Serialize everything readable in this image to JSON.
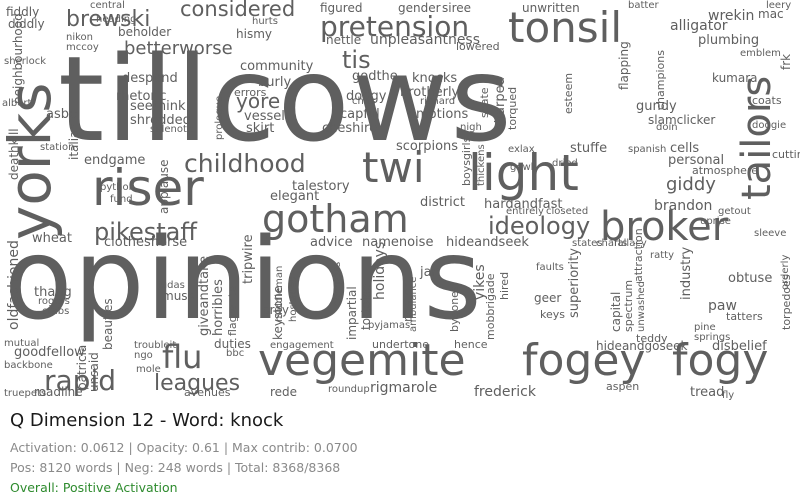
{
  "panel": {
    "title": "Q Dimension 12 - Word: knock",
    "stats_line": "Activation: 0.0612 | Opacity: 0.61 | Max contrib: 0.0700",
    "counts_line": "Pos: 8120 words | Neg: 248 words | Total: 8368/8368",
    "status_line": "Overall: Positive Activation",
    "status_color": "#2e8b2e",
    "word_color": "#5f5f5f"
  },
  "word_cloud": {
    "words": [
      "tillcows",
      "opinions",
      "vegemite",
      "fogey",
      "fogy",
      "gotham",
      "broker",
      "yorks",
      "riser",
      "light",
      "tonsil",
      "tailors",
      "twi",
      "pretension",
      "childhood",
      "pikestaff",
      "ideology",
      "brewski",
      "considered",
      "flu",
      "leagues",
      "rapid",
      "tis",
      "giddy",
      "yore",
      "betterworse",
      "fiddly",
      "figured",
      "gender",
      "siree",
      "unwritten",
      "nettle",
      "unpleasantness",
      "alligator",
      "plumbing",
      "kumara",
      "gundy",
      "slamclicker",
      "cells",
      "personal",
      "atmosphere",
      "brandon",
      "getout",
      "wrekin",
      "mac",
      "coats",
      "cuttin",
      "doggie",
      "despond",
      "rhetoric",
      "seethink",
      "shredded",
      "sidenote",
      "skirt",
      "vessel",
      "community",
      "burly",
      "errors",
      "hismy",
      "beholder",
      "godthe",
      "capful",
      "dodgy",
      "cheshire",
      "knocks",
      "brotherly",
      "emotions",
      "scorpions",
      "stuffe",
      "talestory",
      "elegant",
      "district",
      "hardandfast",
      "advice",
      "namenoise",
      "hideandseek",
      "clotheshorse",
      "wheat",
      "endgame",
      "python",
      "fund",
      "applause",
      "station",
      "italian",
      "asbe",
      "albert",
      "deathkill",
      "oldfashioned",
      "thang",
      "rogers",
      "crabs",
      "muss",
      "judas",
      "beauties",
      "giveandtake",
      "horribles",
      "tripwire",
      "bray",
      "middleman",
      "hostages",
      "rede",
      "impartial",
      "tortoise",
      "holidays",
      "jan",
      "yikes",
      "geer",
      "keys",
      "hired",
      "mobbrigade",
      "superiority",
      "capital",
      "spectrum",
      "unwashed",
      "industry",
      "paw",
      "obtuse",
      "tatters",
      "teddy",
      "hideandgoseek",
      "disbelief",
      "tread",
      "frederick",
      "rigmarole",
      "undertone",
      "hence",
      "avenues",
      "duties",
      "engagement",
      "roundup",
      "goodfellow",
      "mutual",
      "backbone",
      "troubleit",
      "ngo",
      "mole",
      "unsaid",
      "patricia",
      "truepets",
      "roadline",
      "diddly",
      "nikon",
      "mccoy",
      "sherlock",
      "central",
      "hurts",
      "batter",
      "leery",
      "frk",
      "torpedoes",
      "emblem",
      "ambulance",
      "fly",
      "richard",
      "sharped",
      "torqued",
      "spate",
      "gowk",
      "exlax",
      "spanish",
      "esteem",
      "doin",
      "attraction",
      "boysgirls",
      "thickens",
      "nigh",
      "chits",
      "sleeve",
      "flagrante",
      "prologue",
      "keystone",
      "bbc",
      "heading",
      "lowered",
      "uprise",
      "orderly",
      "aspen",
      "pine",
      "springs",
      "neighbourhood",
      "faults",
      "nester",
      "bygones",
      "pyjamas",
      "compass",
      "entirely",
      "closeted",
      "states",
      "charts",
      "fallacy",
      "ratty",
      "dried",
      "champions",
      "flapping"
    ]
  }
}
